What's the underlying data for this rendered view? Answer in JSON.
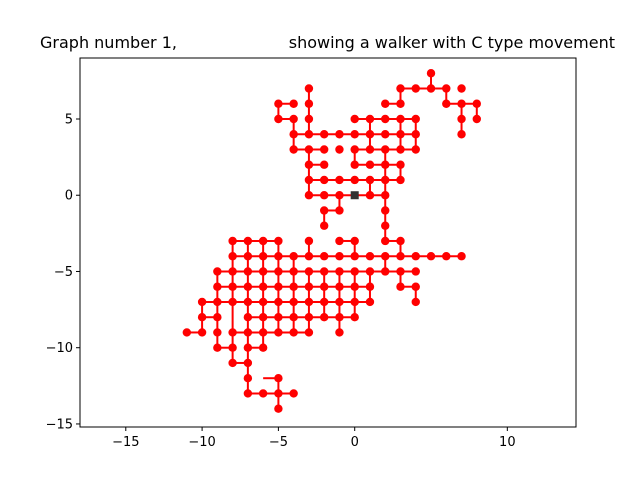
{
  "chart_data": {
    "type": "line",
    "title_left": "Graph number 1,",
    "title_right": "showing a walker with C type movement",
    "xlabel": "",
    "ylabel": "",
    "xlim": [
      -18,
      14.5
    ],
    "ylim": [
      -15.2,
      9.0
    ],
    "xticks": [
      -15,
      -10,
      -5,
      0,
      10
    ],
    "yticks": [
      -15,
      -10,
      -5,
      0,
      5
    ],
    "xtick_labels": [
      "−15",
      "−10",
      "−5",
      "0",
      "10"
    ],
    "ytick_labels": [
      "−15",
      "−10",
      "−5",
      "0",
      "5"
    ],
    "grid": false,
    "line_color": "#ff0000",
    "marker_color": "#ff0000",
    "start_marker_color": "#333333",
    "start_point": [
      0,
      0
    ],
    "points": [
      [
        5,
        8
      ],
      [
        5,
        7
      ],
      [
        4,
        7
      ],
      [
        3,
        7
      ],
      [
        3,
        6
      ],
      [
        2,
        6
      ],
      [
        6,
        7
      ],
      [
        7,
        7
      ],
      [
        6,
        6
      ],
      [
        7,
        6
      ],
      [
        8,
        6
      ],
      [
        7,
        5
      ],
      [
        8,
        5
      ],
      [
        7,
        4
      ],
      [
        -5,
        6
      ],
      [
        -4,
        6
      ],
      [
        -3,
        7
      ],
      [
        -3,
        6
      ],
      [
        -5,
        5
      ],
      [
        -4,
        5
      ],
      [
        -3,
        5
      ],
      [
        -4,
        4
      ],
      [
        -3,
        4
      ],
      [
        -2,
        4
      ],
      [
        -1,
        4
      ],
      [
        0,
        4
      ],
      [
        1,
        4
      ],
      [
        2,
        4
      ],
      [
        3,
        4
      ],
      [
        4,
        4
      ],
      [
        0,
        5
      ],
      [
        1,
        5
      ],
      [
        2,
        5
      ],
      [
        3,
        5
      ],
      [
        4,
        5
      ],
      [
        -4,
        3
      ],
      [
        -3,
        3
      ],
      [
        -2,
        3
      ],
      [
        -1,
        3
      ],
      [
        0,
        3
      ],
      [
        1,
        3
      ],
      [
        2,
        3
      ],
      [
        3,
        3
      ],
      [
        4,
        3
      ],
      [
        -3,
        2
      ],
      [
        -2,
        2
      ],
      [
        0,
        2
      ],
      [
        1,
        2
      ],
      [
        2,
        2
      ],
      [
        3,
        2
      ],
      [
        -3,
        1
      ],
      [
        -2,
        1
      ],
      [
        -1,
        1
      ],
      [
        0,
        1
      ],
      [
        1,
        1
      ],
      [
        2,
        1
      ],
      [
        3,
        1
      ],
      [
        -3,
        0
      ],
      [
        -2,
        0
      ],
      [
        -1,
        0
      ],
      [
        1,
        0
      ],
      [
        2,
        0
      ],
      [
        -2,
        -1
      ],
      [
        -1,
        -1
      ],
      [
        2,
        -1
      ],
      [
        -2,
        -2
      ],
      [
        2,
        -2
      ],
      [
        -1,
        -3
      ],
      [
        0,
        -3
      ],
      [
        2,
        -3
      ],
      [
        3,
        -3
      ],
      [
        -8,
        -3
      ],
      [
        -7,
        -3
      ],
      [
        -6,
        -3
      ],
      [
        -5,
        -3
      ],
      [
        -3,
        -3
      ],
      [
        -8,
        -4
      ],
      [
        -7,
        -4
      ],
      [
        -6,
        -4
      ],
      [
        -5,
        -4
      ],
      [
        -4,
        -4
      ],
      [
        -3,
        -4
      ],
      [
        -2,
        -4
      ],
      [
        -1,
        -4
      ],
      [
        0,
        -4
      ],
      [
        1,
        -4
      ],
      [
        2,
        -4
      ],
      [
        3,
        -4
      ],
      [
        4,
        -4
      ],
      [
        5,
        -4
      ],
      [
        6,
        -4
      ],
      [
        7,
        -4
      ],
      [
        -9,
        -5
      ],
      [
        -8,
        -5
      ],
      [
        -7,
        -5
      ],
      [
        -6,
        -5
      ],
      [
        -5,
        -5
      ],
      [
        -4,
        -5
      ],
      [
        -3,
        -5
      ],
      [
        -2,
        -5
      ],
      [
        -1,
        -5
      ],
      [
        0,
        -5
      ],
      [
        1,
        -5
      ],
      [
        2,
        -5
      ],
      [
        3,
        -5
      ],
      [
        4,
        -5
      ],
      [
        -9,
        -6
      ],
      [
        -8,
        -6
      ],
      [
        -7,
        -6
      ],
      [
        -6,
        -6
      ],
      [
        -5,
        -6
      ],
      [
        -4,
        -6
      ],
      [
        -3,
        -6
      ],
      [
        -2,
        -6
      ],
      [
        -1,
        -6
      ],
      [
        0,
        -6
      ],
      [
        1,
        -6
      ],
      [
        3,
        -6
      ],
      [
        4,
        -6
      ],
      [
        -10,
        -7
      ],
      [
        -9,
        -7
      ],
      [
        -8,
        -7
      ],
      [
        -7,
        -7
      ],
      [
        -6,
        -7
      ],
      [
        -5,
        -7
      ],
      [
        -4,
        -7
      ],
      [
        -3,
        -7
      ],
      [
        -2,
        -7
      ],
      [
        -1,
        -7
      ],
      [
        0,
        -7
      ],
      [
        1,
        -7
      ],
      [
        4,
        -7
      ],
      [
        -10,
        -8
      ],
      [
        -9,
        -8
      ],
      [
        -7,
        -8
      ],
      [
        -6,
        -8
      ],
      [
        -5,
        -8
      ],
      [
        -4,
        -8
      ],
      [
        -3,
        -8
      ],
      [
        -2,
        -8
      ],
      [
        -1,
        -8
      ],
      [
        0,
        -8
      ],
      [
        -11,
        -9
      ],
      [
        -10,
        -9
      ],
      [
        -9,
        -9
      ],
      [
        -8,
        -9
      ],
      [
        -7,
        -9
      ],
      [
        -6,
        -9
      ],
      [
        -5,
        -9
      ],
      [
        -4,
        -9
      ],
      [
        -3,
        -9
      ],
      [
        -1,
        -9
      ],
      [
        -9,
        -10
      ],
      [
        -8,
        -10
      ],
      [
        -7,
        -10
      ],
      [
        -6,
        -10
      ],
      [
        -8,
        -11
      ],
      [
        -7,
        -11
      ],
      [
        -7,
        -12
      ],
      [
        -5,
        -12
      ],
      [
        -7,
        -13
      ],
      [
        -6,
        -13
      ],
      [
        -5,
        -13
      ],
      [
        -4,
        -13
      ],
      [
        -5,
        -14
      ]
    ],
    "segments": [
      [
        [
          5,
          8
        ],
        [
          5,
          7
        ]
      ],
      [
        [
          3,
          7
        ],
        [
          6,
          7
        ]
      ],
      [
        [
          6,
          7
        ],
        [
          6,
          6
        ]
      ],
      [
        [
          6,
          6
        ],
        [
          8,
          6
        ]
      ],
      [
        [
          7,
          6
        ],
        [
          7,
          4
        ]
      ],
      [
        [
          8,
          6
        ],
        [
          8,
          5
        ]
      ],
      [
        [
          3,
          7
        ],
        [
          3,
          6
        ]
      ],
      [
        [
          2,
          6
        ],
        [
          3,
          6
        ]
      ],
      [
        [
          -5,
          6
        ],
        [
          -4,
          6
        ]
      ],
      [
        [
          -3,
          7
        ],
        [
          -3,
          4
        ]
      ],
      [
        [
          -5,
          6
        ],
        [
          -5,
          5
        ]
      ],
      [
        [
          -5,
          5
        ],
        [
          -4,
          5
        ]
      ],
      [
        [
          -4,
          5
        ],
        [
          -4,
          3
        ]
      ],
      [
        [
          -4,
          4
        ],
        [
          4,
          4
        ]
      ],
      [
        [
          0,
          5
        ],
        [
          4,
          5
        ]
      ],
      [
        [
          1,
          5
        ],
        [
          1,
          3
        ]
      ],
      [
        [
          3,
          5
        ],
        [
          3,
          3
        ]
      ],
      [
        [
          4,
          5
        ],
        [
          4,
          3
        ]
      ],
      [
        [
          -4,
          3
        ],
        [
          -2,
          3
        ]
      ],
      [
        [
          0,
          3
        ],
        [
          4,
          3
        ]
      ],
      [
        [
          -3,
          3
        ],
        [
          -3,
          0
        ]
      ],
      [
        [
          -3,
          2
        ],
        [
          -2,
          2
        ]
      ],
      [
        [
          0,
          2
        ],
        [
          3,
          2
        ]
      ],
      [
        [
          0,
          3
        ],
        [
          0,
          2
        ]
      ],
      [
        [
          2,
          3
        ],
        [
          2,
          1
        ]
      ],
      [
        [
          3,
          2
        ],
        [
          3,
          1
        ]
      ],
      [
        [
          -3,
          1
        ],
        [
          3,
          1
        ]
      ],
      [
        [
          -3,
          0
        ],
        [
          0,
          0
        ]
      ],
      [
        [
          0,
          0
        ],
        [
          2,
          0
        ]
      ],
      [
        [
          2,
          1
        ],
        [
          2,
          -3
        ]
      ],
      [
        [
          1,
          1
        ],
        [
          1,
          0
        ]
      ],
      [
        [
          -2,
          -1
        ],
        [
          -1,
          -1
        ]
      ],
      [
        [
          -1,
          -1
        ],
        [
          -1,
          0
        ]
      ],
      [
        [
          -2,
          -1
        ],
        [
          -2,
          -2
        ]
      ],
      [
        [
          -1,
          -3
        ],
        [
          0,
          -3
        ]
      ],
      [
        [
          0,
          -3
        ],
        [
          0,
          -4
        ]
      ],
      [
        [
          2,
          -3
        ],
        [
          3,
          -3
        ]
      ],
      [
        [
          3,
          -3
        ],
        [
          3,
          -4
        ]
      ],
      [
        [
          -8,
          -3
        ],
        [
          -5,
          -3
        ]
      ],
      [
        [
          -3,
          -3
        ],
        [
          -3,
          -4
        ]
      ],
      [
        [
          -8,
          -4
        ],
        [
          7,
          -4
        ]
      ],
      [
        [
          -9,
          -5
        ],
        [
          4,
          -5
        ]
      ],
      [
        [
          -9,
          -6
        ],
        [
          1,
          -6
        ]
      ],
      [
        [
          3,
          -6
        ],
        [
          4,
          -6
        ]
      ],
      [
        [
          -10,
          -7
        ],
        [
          1,
          -7
        ]
      ],
      [
        [
          -10,
          -8
        ],
        [
          -9,
          -8
        ]
      ],
      [
        [
          -7,
          -8
        ],
        [
          0,
          -8
        ]
      ],
      [
        [
          -11,
          -9
        ],
        [
          -10,
          -9
        ]
      ],
      [
        [
          -8,
          -9
        ],
        [
          -3,
          -9
        ]
      ],
      [
        [
          -9,
          -10
        ],
        [
          -8,
          -10
        ]
      ],
      [
        [
          -7,
          -10
        ],
        [
          -6,
          -10
        ]
      ],
      [
        [
          -9,
          -5
        ],
        [
          -9,
          -10
        ]
      ],
      [
        [
          -10,
          -7
        ],
        [
          -10,
          -9
        ]
      ],
      [
        [
          -8,
          -3
        ],
        [
          -8,
          -11
        ]
      ],
      [
        [
          -7,
          -3
        ],
        [
          -7,
          -13
        ]
      ],
      [
        [
          -6,
          -3
        ],
        [
          -6,
          -10
        ]
      ],
      [
        [
          -5,
          -3
        ],
        [
          -5,
          -9
        ]
      ],
      [
        [
          -4,
          -4
        ],
        [
          -4,
          -9
        ]
      ],
      [
        [
          -3,
          -5
        ],
        [
          -3,
          -9
        ]
      ],
      [
        [
          -2,
          -5
        ],
        [
          -2,
          -8
        ]
      ],
      [
        [
          -1,
          -5
        ],
        [
          -1,
          -9
        ]
      ],
      [
        [
          0,
          -5
        ],
        [
          0,
          -8
        ]
      ],
      [
        [
          1,
          -5
        ],
        [
          1,
          -7
        ]
      ],
      [
        [
          2,
          -4
        ],
        [
          2,
          -5
        ]
      ],
      [
        [
          3,
          -5
        ],
        [
          3,
          -6
        ]
      ],
      [
        [
          4,
          -6
        ],
        [
          4,
          -7
        ]
      ],
      [
        [
          -7,
          -13
        ],
        [
          -4,
          -13
        ]
      ],
      [
        [
          -6,
          -12
        ],
        [
          -5,
          -12
        ]
      ],
      [
        [
          -5,
          -12
        ],
        [
          -5,
          -14
        ]
      ],
      [
        [
          -8,
          -11
        ],
        [
          -7,
          -11
        ]
      ]
    ]
  }
}
